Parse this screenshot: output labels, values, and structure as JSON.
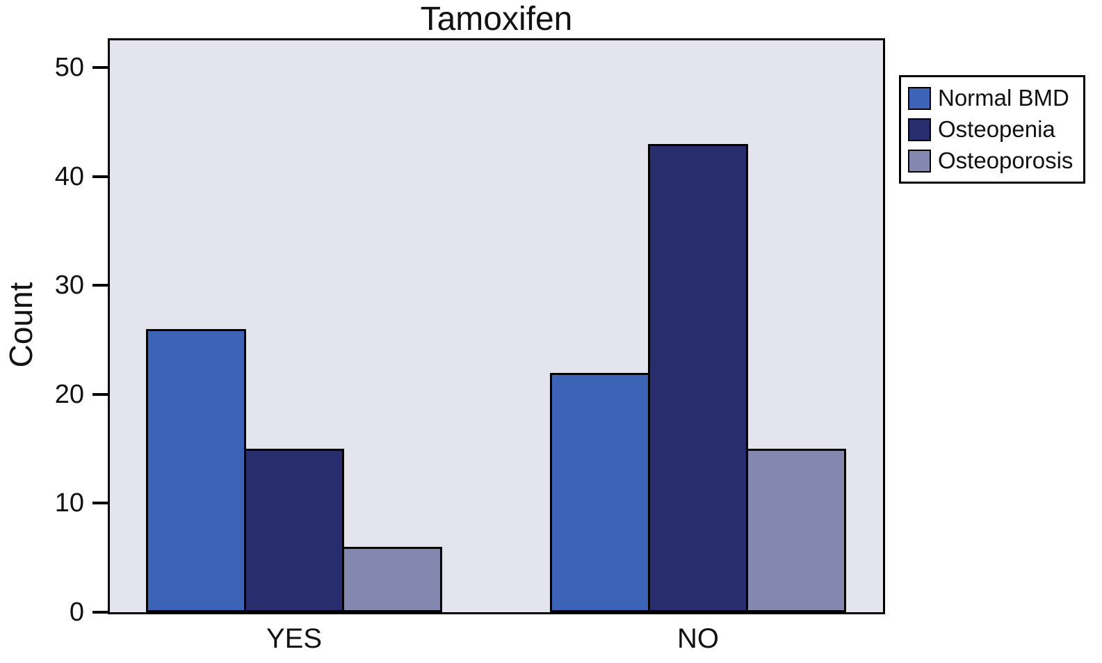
{
  "chart_data": {
    "type": "bar",
    "title": "Tamoxifen",
    "xlabel": "",
    "ylabel": "Count",
    "categories": [
      "YES",
      "NO"
    ],
    "series": [
      {
        "name": "Normal BMD",
        "values": [
          26,
          22
        ],
        "color": "#3d63b6"
      },
      {
        "name": "Osteopenia",
        "values": [
          15,
          43
        ],
        "color": "#282d6d"
      },
      {
        "name": "Osteoporosis",
        "values": [
          6,
          15
        ],
        "color": "#8487af"
      }
    ],
    "ylim": [
      0,
      52.5
    ],
    "yticks": [
      0,
      10,
      20,
      30,
      40,
      50
    ],
    "grid": false,
    "legend_position": "upper right outside",
    "plot_background": "#e4e4ee",
    "bar_outline_color": "#000000"
  }
}
